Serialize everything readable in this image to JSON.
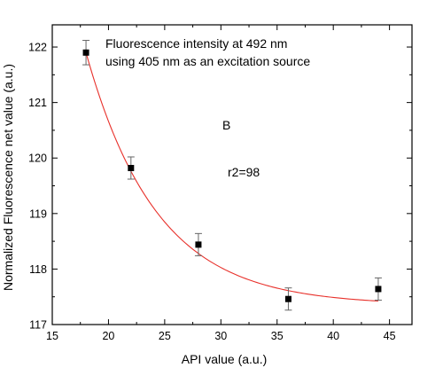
{
  "chart_data": {
    "type": "scatter",
    "title": "",
    "xlabel": "API value (a.u.)",
    "ylabel": "Normalized Fluorescence net value (a.u.)",
    "xlim": [
      15,
      47
    ],
    "ylim": [
      117,
      122.4
    ],
    "xticks": [
      15,
      20,
      25,
      30,
      35,
      40,
      45
    ],
    "yticks": [
      117,
      118,
      119,
      120,
      121,
      122
    ],
    "grid": false,
    "points": {
      "x": [
        18,
        22,
        28,
        36,
        44
      ],
      "y": [
        121.9,
        119.82,
        118.44,
        117.46,
        117.64
      ],
      "error": [
        0.22,
        0.2,
        0.2,
        0.2,
        0.2
      ],
      "marker": "square",
      "color": "#000000"
    },
    "fit": {
      "type": "exponential decay",
      "color": "#e8302a",
      "model": {
        "y0": 117.35,
        "A": 4.55,
        "x0": 18,
        "t": 6.3
      }
    },
    "annotations": {
      "line1": "Fluorescence intensity at 492 nm",
      "line2": "using 405 nm as an excitation source",
      "panel": "B",
      "r2": "r2=98"
    }
  }
}
